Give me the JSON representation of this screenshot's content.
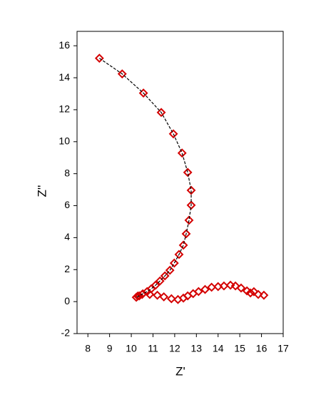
{
  "chart_data": {
    "type": "scatter",
    "xlabel": "Z'",
    "ylabel": "Z''",
    "xlim": [
      7.5,
      17
    ],
    "ylim": [
      -2,
      16.9
    ],
    "xticks": [
      8,
      9,
      10,
      11,
      12,
      13,
      14,
      15,
      16,
      17
    ],
    "yticks": [
      -2,
      0,
      2,
      4,
      6,
      8,
      10,
      12,
      14,
      16
    ],
    "series": [
      {
        "color": "#d40000",
        "marker": "diamond",
        "x": [
          8.53,
          9.58,
          10.56,
          11.38,
          11.94,
          12.34,
          12.6,
          12.76,
          12.76,
          12.66,
          12.53,
          12.4,
          12.2,
          11.98,
          11.78,
          11.55,
          11.32,
          11.12,
          10.92,
          10.73,
          10.53,
          10.37,
          10.23,
          10.3,
          10.5,
          10.85,
          11.2,
          11.5,
          11.85,
          12.15,
          12.4,
          12.6,
          12.85,
          13.1,
          13.4,
          13.7,
          14.0,
          14.27,
          14.57,
          14.8,
          15.06,
          15.33,
          15.49,
          15.65,
          15.85,
          16.11
        ],
        "values": [
          15.22,
          14.24,
          13.04,
          11.83,
          10.49,
          9.29,
          8.08,
          6.96,
          6.03,
          5.09,
          4.24,
          3.53,
          2.95,
          2.41,
          1.96,
          1.61,
          1.29,
          1.03,
          0.8,
          0.63,
          0.49,
          0.36,
          0.27,
          0.35,
          0.45,
          0.45,
          0.4,
          0.3,
          0.18,
          0.13,
          0.22,
          0.36,
          0.5,
          0.63,
          0.76,
          0.9,
          0.94,
          0.98,
          1.03,
          0.98,
          0.85,
          0.67,
          0.54,
          0.62,
          0.45,
          0.4
        ]
      },
      {
        "color": "#000000",
        "style": "dashed",
        "x": [
          8.53,
          9.58,
          10.56,
          11.38,
          11.94,
          12.34,
          12.6,
          12.76,
          12.76,
          12.66,
          12.53,
          12.4,
          12.2,
          11.98,
          11.78,
          11.55,
          11.32,
          11.12,
          10.92,
          10.73,
          10.53,
          10.37,
          10.23
        ],
        "values": [
          15.22,
          14.24,
          13.04,
          11.83,
          10.49,
          9.29,
          8.08,
          6.96,
          6.03,
          5.09,
          4.24,
          3.53,
          2.95,
          2.41,
          1.96,
          1.61,
          1.29,
          1.03,
          0.8,
          0.63,
          0.49,
          0.36,
          0.27
        ]
      }
    ]
  }
}
